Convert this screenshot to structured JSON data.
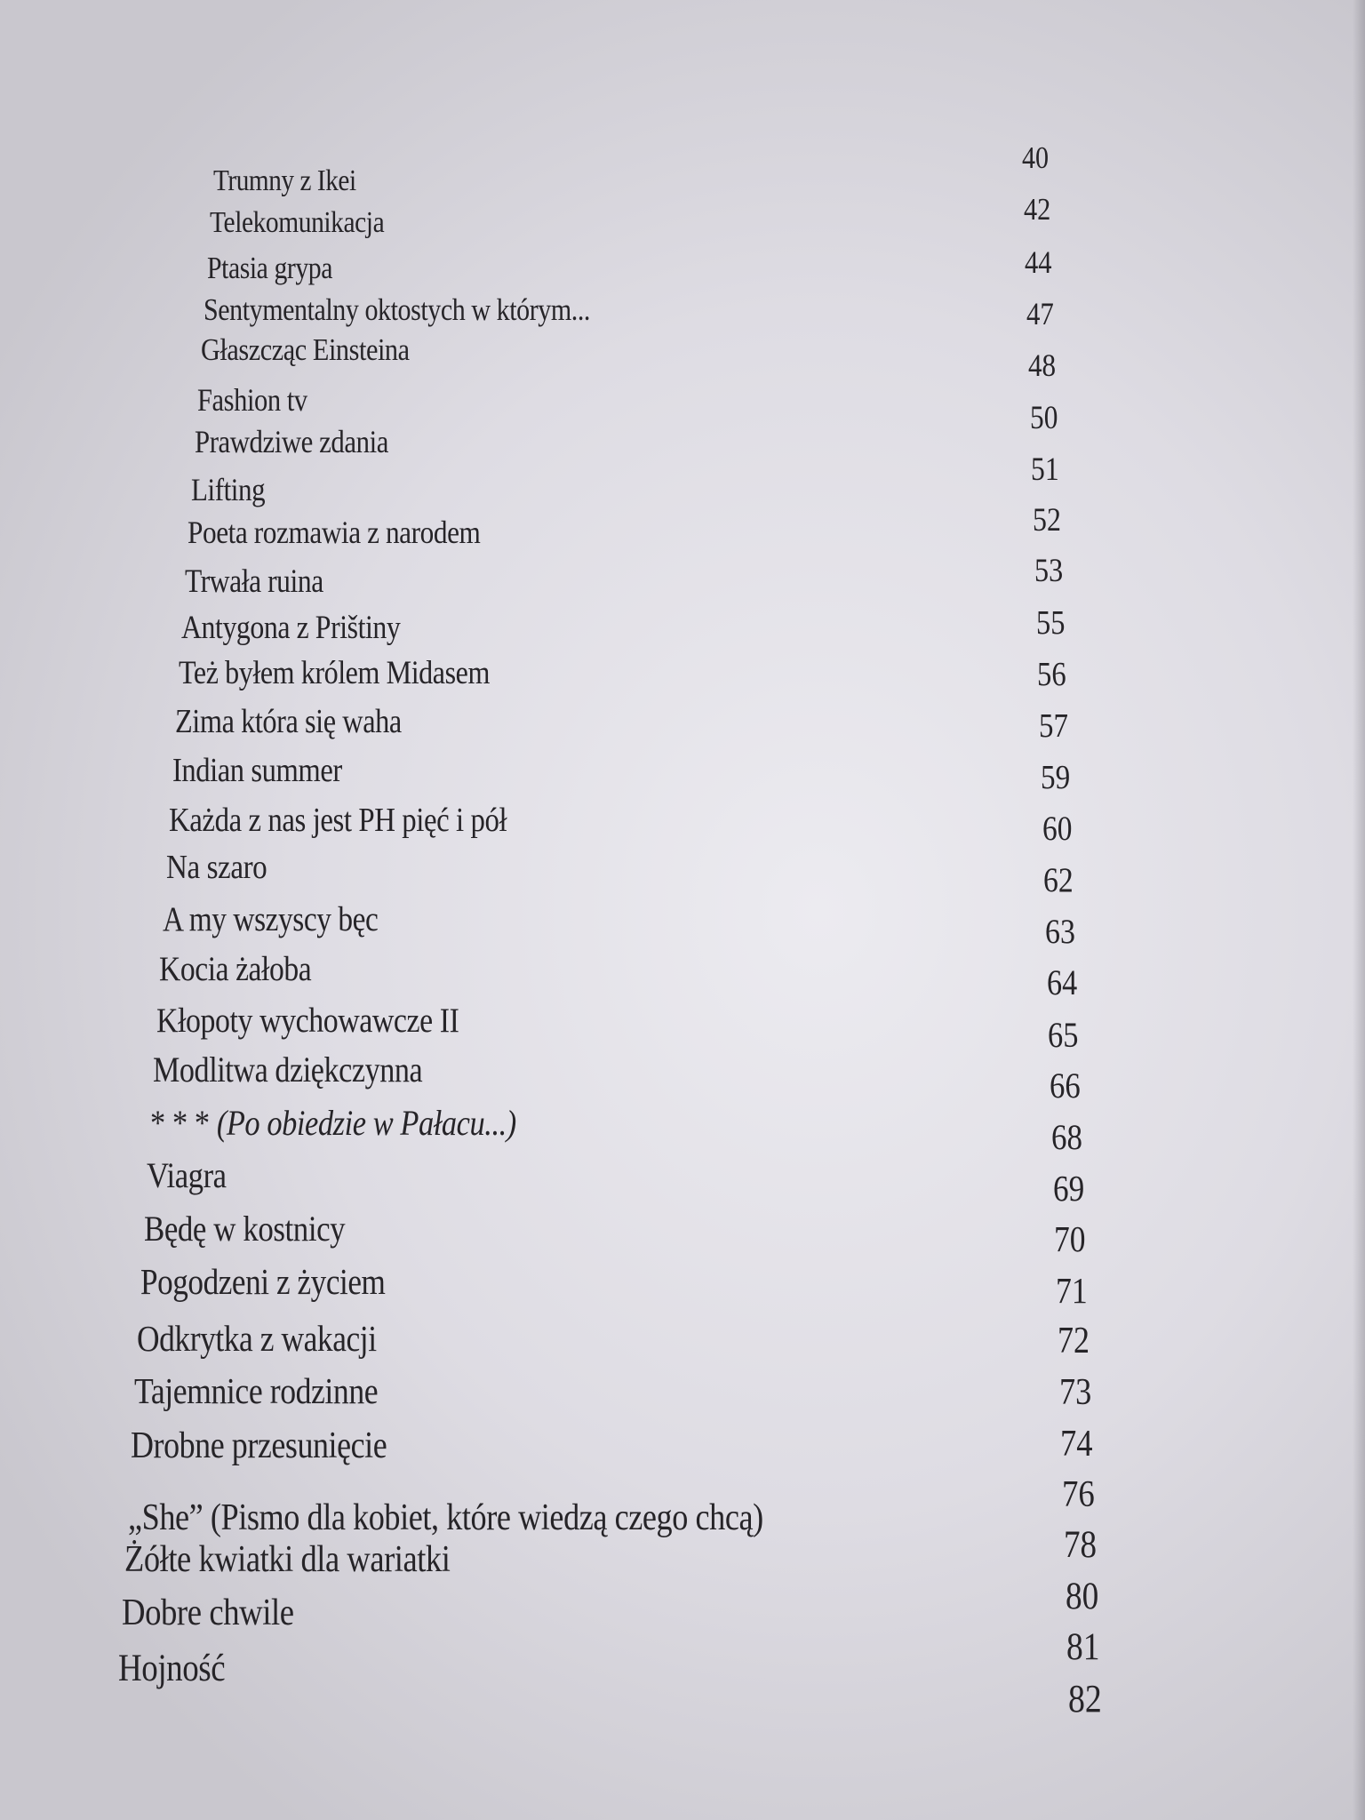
{
  "toc": {
    "entries": [
      {
        "title": "Trumny z Ikei",
        "page": "40"
      },
      {
        "title": "Telekomunikacja",
        "page": "42"
      },
      {
        "title": "Ptasia grypa",
        "page": "44"
      },
      {
        "title": "Sentymentalny oktostych w którym...",
        "page": "47"
      },
      {
        "title": "Głaszcząc Einsteina",
        "page": "48"
      },
      {
        "title": "Fashion tv",
        "page": "50"
      },
      {
        "title": "Prawdziwe zdania",
        "page": "51"
      },
      {
        "title": "Lifting",
        "page": "52"
      },
      {
        "title": "Poeta rozmawia  z narodem",
        "page": "53"
      },
      {
        "title": "Trwała ruina",
        "page": "55"
      },
      {
        "title": "Antygona z Prištiny",
        "page": "56"
      },
      {
        "title": "Też byłem królem Midasem",
        "page": "57"
      },
      {
        "title": "Zima która się waha",
        "page": "59"
      },
      {
        "title": "Indian summer",
        "page": "60"
      },
      {
        "title": "Każda z nas jest PH pięć i pół",
        "page": "62"
      },
      {
        "title": "Na szaro",
        "page": "63"
      },
      {
        "title": "A my wszyscy bęc",
        "page": "64"
      },
      {
        "title": "Kocia żałoba",
        "page": "65"
      },
      {
        "title": "Kłopoty wychowawcze  II",
        "page": "66"
      },
      {
        "title": "Modlitwa dziękczynna",
        "page": "68"
      },
      {
        "title": "* * * ",
        "title_italic": "(Po obiedzie w Pałacu...)",
        "page": "69"
      },
      {
        "title": "Viagra",
        "page": "70"
      },
      {
        "title": "Będę w kostnicy",
        "page": "71"
      },
      {
        "title": "Pogodzeni z życiem",
        "page": "72"
      },
      {
        "title": "Odkrytka z wakacji",
        "page": "73"
      },
      {
        "title": "Tajemnice rodzinne",
        "page": "74"
      },
      {
        "title": "Drobne przesunięcie",
        "page": "76"
      },
      {
        "title": "„She” (Pismo dla kobiet, które wiedzą czego chcą)",
        "page": "78"
      },
      {
        "title": "Żółte kwiatki dla wariatki",
        "page": "80"
      },
      {
        "title": "Dobre chwile",
        "page": "81"
      },
      {
        "title": "Hojność",
        "page": "82"
      }
    ]
  }
}
